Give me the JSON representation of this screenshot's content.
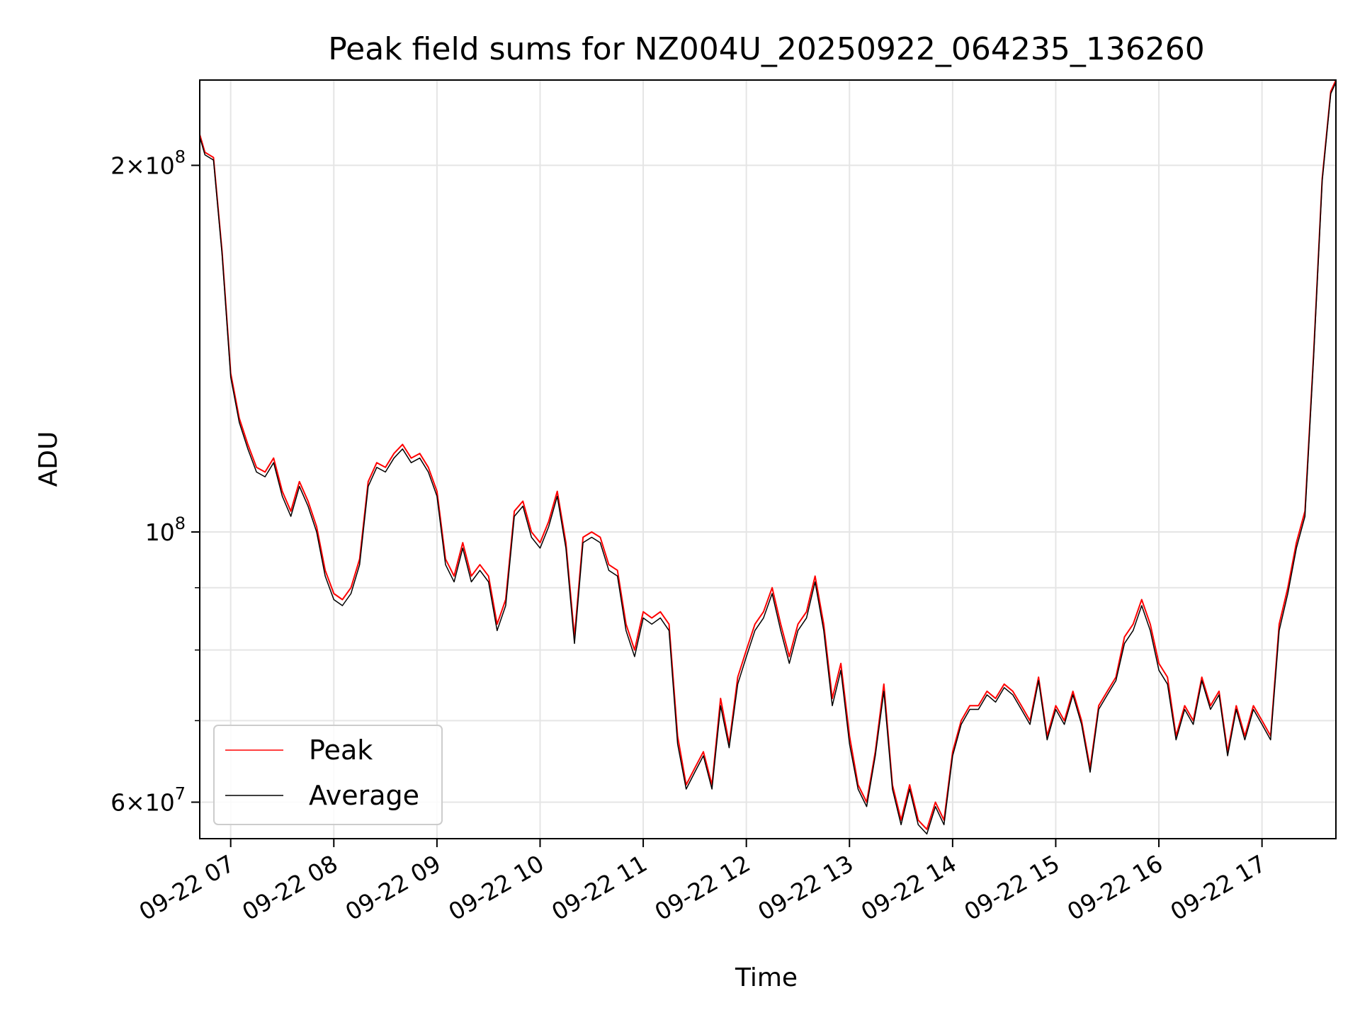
{
  "chart_data": {
    "type": "line",
    "title": "Peak field sums for NZ004U_20250922_064235_136260",
    "xlabel": "Time",
    "ylabel": "ADU",
    "yscale": "log",
    "ylim": [
      56000000,
      235000000
    ],
    "xlim": [
      "09-22 06:42",
      "09-22 17:43"
    ],
    "grid": true,
    "legend_position": "lower-left",
    "x_tick_labels": [
      "09-22 07",
      "09-22 08",
      "09-22 09",
      "09-22 10",
      "09-22 11",
      "09-22 12",
      "09-22 13",
      "09-22 14",
      "09-22 15",
      "09-22 16",
      "09-22 17"
    ],
    "y_tick_labels": [
      {
        "value": 200000000,
        "mantissa": "2",
        "exponent": "8"
      },
      {
        "value": 100000000,
        "mantissa": "",
        "exponent": "8"
      },
      {
        "value": 60000000,
        "mantissa": "6",
        "exponent": "7"
      }
    ],
    "series": [
      {
        "name": "Peak",
        "color": "#ff0000",
        "x": [
          "09-22 06:42",
          "09-22 06:45",
          "09-22 06:50",
          "09-22 06:55",
          "09-22 07:00",
          "09-22 07:05",
          "09-22 07:10",
          "09-22 07:15",
          "09-22 07:20",
          "09-22 07:25",
          "09-22 07:30",
          "09-22 07:35",
          "09-22 07:40",
          "09-22 07:45",
          "09-22 07:50",
          "09-22 07:55",
          "09-22 08:00",
          "09-22 08:05",
          "09-22 08:10",
          "09-22 08:15",
          "09-22 08:20",
          "09-22 08:25",
          "09-22 08:30",
          "09-22 08:35",
          "09-22 08:40",
          "09-22 08:45",
          "09-22 08:50",
          "09-22 08:55",
          "09-22 09:00",
          "09-22 09:05",
          "09-22 09:10",
          "09-22 09:15",
          "09-22 09:20",
          "09-22 09:25",
          "09-22 09:30",
          "09-22 09:35",
          "09-22 09:40",
          "09-22 09:45",
          "09-22 09:50",
          "09-22 09:55",
          "09-22 10:00",
          "09-22 10:05",
          "09-22 10:10",
          "09-22 10:15",
          "09-22 10:20",
          "09-22 10:25",
          "09-22 10:30",
          "09-22 10:35",
          "09-22 10:40",
          "09-22 10:45",
          "09-22 10:50",
          "09-22 10:55",
          "09-22 11:00",
          "09-22 11:05",
          "09-22 11:10",
          "09-22 11:15",
          "09-22 11:20",
          "09-22 11:25",
          "09-22 11:30",
          "09-22 11:35",
          "09-22 11:40",
          "09-22 11:45",
          "09-22 11:50",
          "09-22 11:55",
          "09-22 12:00",
          "09-22 12:05",
          "09-22 12:10",
          "09-22 12:15",
          "09-22 12:20",
          "09-22 12:25",
          "09-22 12:30",
          "09-22 12:35",
          "09-22 12:40",
          "09-22 12:45",
          "09-22 12:50",
          "09-22 12:55",
          "09-22 13:00",
          "09-22 13:05",
          "09-22 13:10",
          "09-22 13:15",
          "09-22 13:20",
          "09-22 13:25",
          "09-22 13:30",
          "09-22 13:35",
          "09-22 13:40",
          "09-22 13:45",
          "09-22 13:50",
          "09-22 13:55",
          "09-22 14:00",
          "09-22 14:05",
          "09-22 14:10",
          "09-22 14:15",
          "09-22 14:20",
          "09-22 14:25",
          "09-22 14:30",
          "09-22 14:35",
          "09-22 14:40",
          "09-22 14:45",
          "09-22 14:50",
          "09-22 14:55",
          "09-22 15:00",
          "09-22 15:05",
          "09-22 15:10",
          "09-22 15:15",
          "09-22 15:20",
          "09-22 15:25",
          "09-22 15:30",
          "09-22 15:35",
          "09-22 15:40",
          "09-22 15:45",
          "09-22 15:50",
          "09-22 15:55",
          "09-22 16:00",
          "09-22 16:05",
          "09-22 16:10",
          "09-22 16:15",
          "09-22 16:20",
          "09-22 16:25",
          "09-22 16:30",
          "09-22 16:35",
          "09-22 16:40",
          "09-22 16:45",
          "09-22 16:50",
          "09-22 16:55",
          "09-22 17:00",
          "09-22 17:05",
          "09-22 17:10",
          "09-22 17:15",
          "09-22 17:20",
          "09-22 17:25",
          "09-22 17:30",
          "09-22 17:35",
          "09-22 17:40",
          "09-22 17:43"
        ],
        "values": [
          212000000,
          205000000,
          203000000,
          170000000,
          135000000,
          124000000,
          118000000,
          113000000,
          112000000,
          115000000,
          108000000,
          104000000,
          110000000,
          106000000,
          101000000,
          93000000,
          89000000,
          88000000,
          90000000,
          95000000,
          110000000,
          114000000,
          113000000,
          116000000,
          118000000,
          115000000,
          116000000,
          113000000,
          108000000,
          95000000,
          92000000,
          98000000,
          92000000,
          94000000,
          92000000,
          84000000,
          88000000,
          104000000,
          106000000,
          100000000,
          98000000,
          102000000,
          108000000,
          98000000,
          82000000,
          99000000,
          100000000,
          99000000,
          94000000,
          93000000,
          84000000,
          80000000,
          86000000,
          85000000,
          86000000,
          84000000,
          68000000,
          62000000,
          64000000,
          66000000,
          62000000,
          73000000,
          67000000,
          76000000,
          80000000,
          84000000,
          86000000,
          90000000,
          84000000,
          79000000,
          84000000,
          86000000,
          92000000,
          84000000,
          73000000,
          78000000,
          68000000,
          62000000,
          60000000,
          66000000,
          75000000,
          62000000,
          58000000,
          62000000,
          58000000,
          57000000,
          60000000,
          58000000,
          66000000,
          70000000,
          72000000,
          72000000,
          74000000,
          73000000,
          75000000,
          74000000,
          72000000,
          70000000,
          76000000,
          68000000,
          72000000,
          70000000,
          74000000,
          70000000,
          64000000,
          72000000,
          74000000,
          76000000,
          82000000,
          84000000,
          88000000,
          84000000,
          78000000,
          76000000,
          68000000,
          72000000,
          70000000,
          76000000,
          72000000,
          74000000,
          66000000,
          72000000,
          68000000,
          72000000,
          70000000,
          68000000,
          84000000,
          90000000,
          98000000,
          104000000,
          140000000,
          195000000,
          230000000,
          235000000
        ]
      },
      {
        "name": "Average",
        "color": "#000000",
        "x": [
          "09-22 06:42",
          "09-22 06:45",
          "09-22 06:50",
          "09-22 06:55",
          "09-22 07:00",
          "09-22 07:05",
          "09-22 07:10",
          "09-22 07:15",
          "09-22 07:20",
          "09-22 07:25",
          "09-22 07:30",
          "09-22 07:35",
          "09-22 07:40",
          "09-22 07:45",
          "09-22 07:50",
          "09-22 07:55",
          "09-22 08:00",
          "09-22 08:05",
          "09-22 08:10",
          "09-22 08:15",
          "09-22 08:20",
          "09-22 08:25",
          "09-22 08:30",
          "09-22 08:35",
          "09-22 08:40",
          "09-22 08:45",
          "09-22 08:50",
          "09-22 08:55",
          "09-22 09:00",
          "09-22 09:05",
          "09-22 09:10",
          "09-22 09:15",
          "09-22 09:20",
          "09-22 09:25",
          "09-22 09:30",
          "09-22 09:35",
          "09-22 09:40",
          "09-22 09:45",
          "09-22 09:50",
          "09-22 09:55",
          "09-22 10:00",
          "09-22 10:05",
          "09-22 10:10",
          "09-22 10:15",
          "09-22 10:20",
          "09-22 10:25",
          "09-22 10:30",
          "09-22 10:35",
          "09-22 10:40",
          "09-22 10:45",
          "09-22 10:50",
          "09-22 10:55",
          "09-22 11:00",
          "09-22 11:05",
          "09-22 11:10",
          "09-22 11:15",
          "09-22 11:20",
          "09-22 11:25",
          "09-22 11:30",
          "09-22 11:35",
          "09-22 11:40",
          "09-22 11:45",
          "09-22 11:50",
          "09-22 11:55",
          "09-22 12:00",
          "09-22 12:05",
          "09-22 12:10",
          "09-22 12:15",
          "09-22 12:20",
          "09-22 12:25",
          "09-22 12:30",
          "09-22 12:35",
          "09-22 12:40",
          "09-22 12:45",
          "09-22 12:50",
          "09-22 12:55",
          "09-22 13:00",
          "09-22 13:05",
          "09-22 13:10",
          "09-22 13:15",
          "09-22 13:20",
          "09-22 13:25",
          "09-22 13:30",
          "09-22 13:35",
          "09-22 13:40",
          "09-22 13:45",
          "09-22 13:50",
          "09-22 13:55",
          "09-22 14:00",
          "09-22 14:05",
          "09-22 14:10",
          "09-22 14:15",
          "09-22 14:20",
          "09-22 14:25",
          "09-22 14:30",
          "09-22 14:35",
          "09-22 14:40",
          "09-22 14:45",
          "09-22 14:50",
          "09-22 14:55",
          "09-22 15:00",
          "09-22 15:05",
          "09-22 15:10",
          "09-22 15:15",
          "09-22 15:20",
          "09-22 15:25",
          "09-22 15:30",
          "09-22 15:35",
          "09-22 15:40",
          "09-22 15:45",
          "09-22 15:50",
          "09-22 15:55",
          "09-22 16:00",
          "09-22 16:05",
          "09-22 16:10",
          "09-22 16:15",
          "09-22 16:20",
          "09-22 16:25",
          "09-22 16:30",
          "09-22 16:35",
          "09-22 16:40",
          "09-22 16:45",
          "09-22 16:50",
          "09-22 16:55",
          "09-22 17:00",
          "09-22 17:05",
          "09-22 17:10",
          "09-22 17:15",
          "09-22 17:20",
          "09-22 17:25",
          "09-22 17:30",
          "09-22 17:35",
          "09-22 17:40",
          "09-22 17:43"
        ],
        "values": [
          211000000,
          204000000,
          202000000,
          169000000,
          134000000,
          123000000,
          117000000,
          112000000,
          111000000,
          114000000,
          107000000,
          103000000,
          109000000,
          105000000,
          100000000,
          92000000,
          88000000,
          87000000,
          89000000,
          94000000,
          109000000,
          113000000,
          112000000,
          115000000,
          117000000,
          114000000,
          115000000,
          112000000,
          107000000,
          94000000,
          91000000,
          97000000,
          91000000,
          93000000,
          91000000,
          83000000,
          87000000,
          103000000,
          105000000,
          99000000,
          97000000,
          101000000,
          107000000,
          97000000,
          81000000,
          98000000,
          99000000,
          98000000,
          93000000,
          92000000,
          83000000,
          79000000,
          85000000,
          84000000,
          85000000,
          83000000,
          67000000,
          61500000,
          63500000,
          65500000,
          61500000,
          72000000,
          66500000,
          75000000,
          79000000,
          83000000,
          85000000,
          89000000,
          83000000,
          78000000,
          83000000,
          85000000,
          91000000,
          83000000,
          72000000,
          77000000,
          67000000,
          61500000,
          59500000,
          65500000,
          74000000,
          61500000,
          57500000,
          61500000,
          57500000,
          56500000,
          59500000,
          57500000,
          65500000,
          69500000,
          71500000,
          71500000,
          73500000,
          72500000,
          74500000,
          73500000,
          71500000,
          69500000,
          75500000,
          67500000,
          71500000,
          69500000,
          73500000,
          69500000,
          63500000,
          71500000,
          73500000,
          75500000,
          81000000,
          83000000,
          87000000,
          83000000,
          77000000,
          75000000,
          67500000,
          71500000,
          69500000,
          75500000,
          71500000,
          73500000,
          65500000,
          71500000,
          67500000,
          71500000,
          69500000,
          67500000,
          83000000,
          89000000,
          97000000,
          103000000,
          139000000,
          194000000,
          229000000,
          234000000
        ]
      }
    ]
  }
}
